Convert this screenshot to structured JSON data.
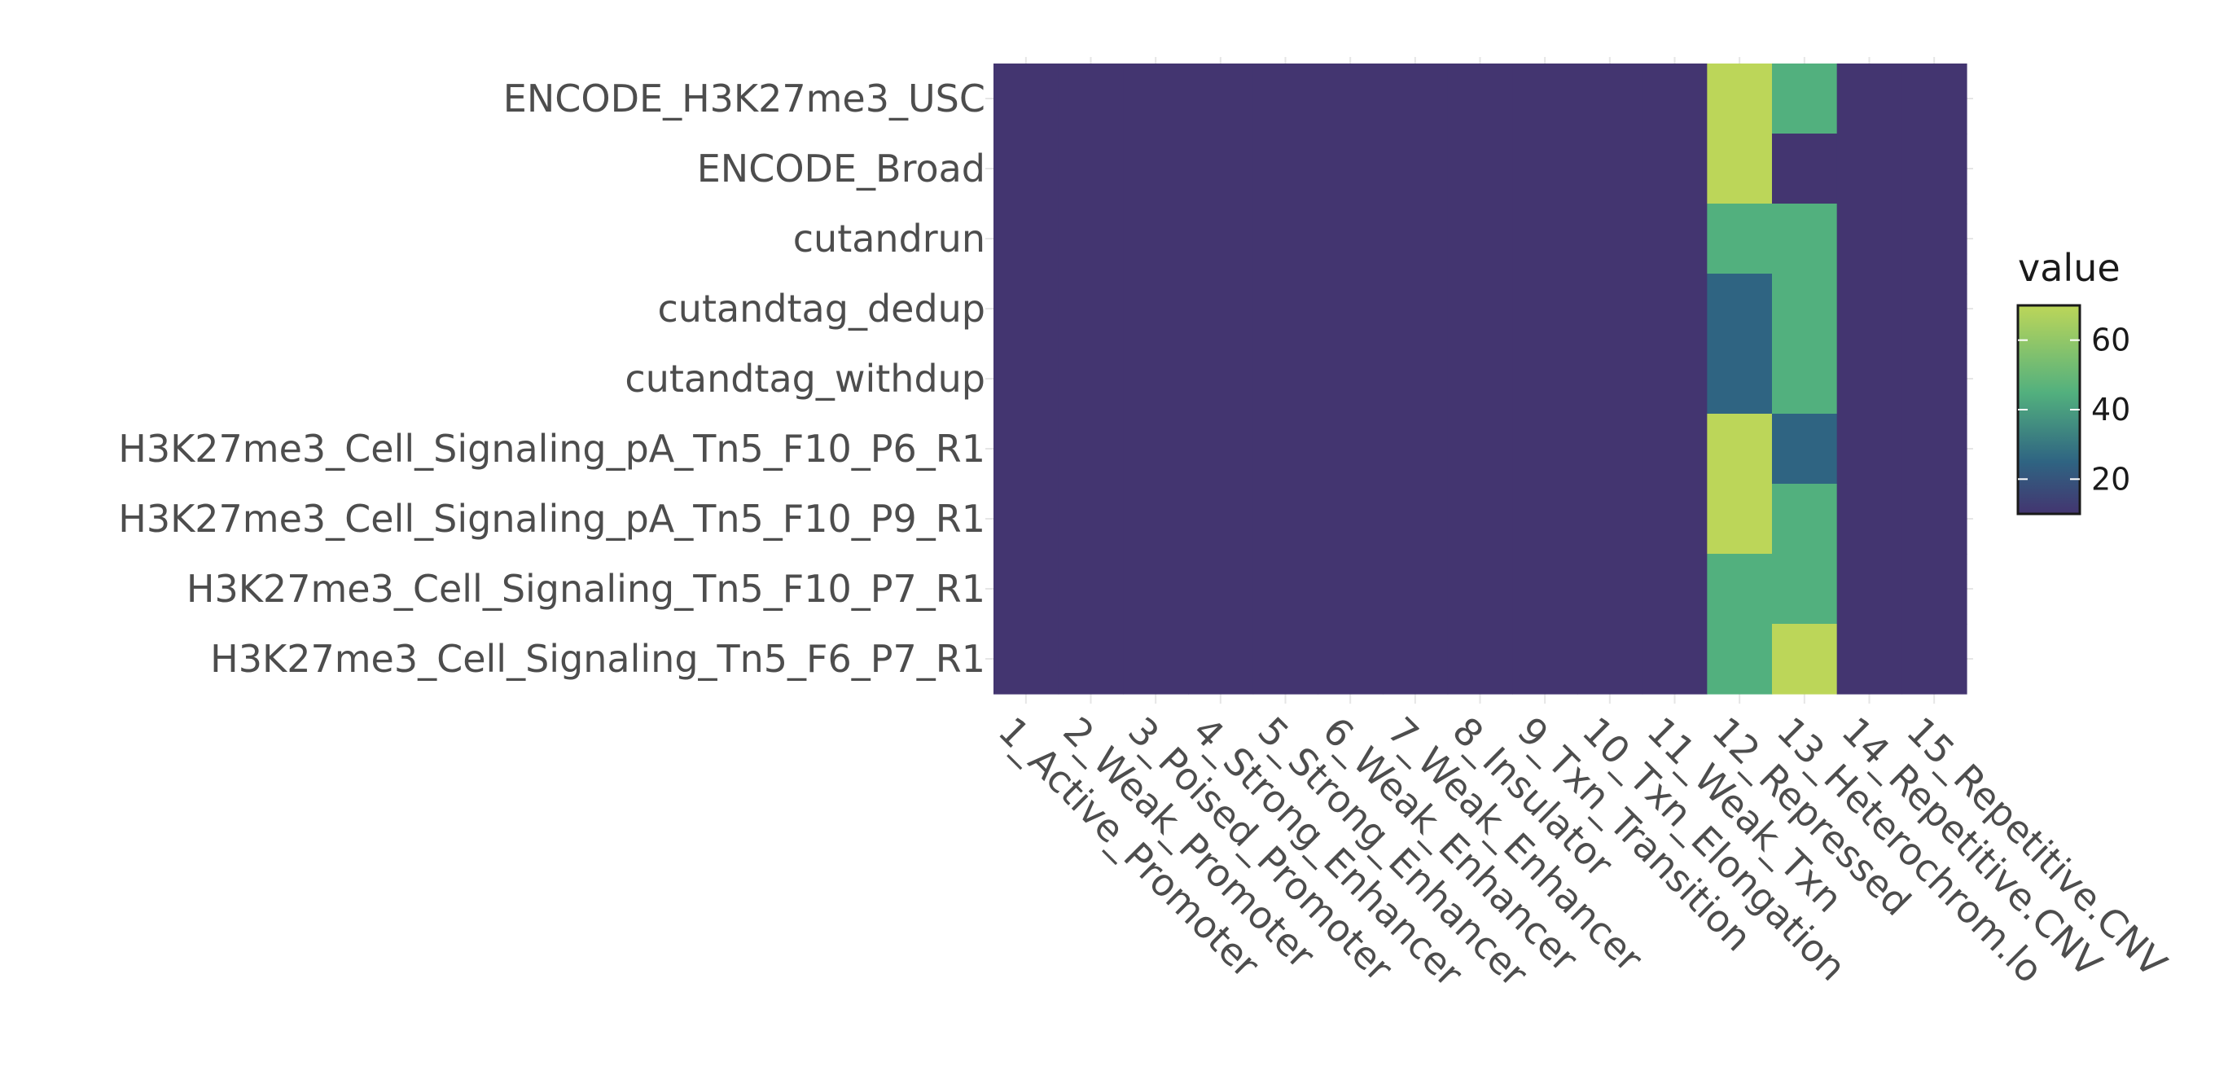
{
  "chart_data": {
    "type": "heatmap",
    "title": "",
    "xlabel": "",
    "ylabel": "",
    "x_categories": [
      "1_Active_Promoter",
      "2_Weak_Promoter",
      "3_Poised_Promoter",
      "4_Strong_Enhancer",
      "5_Strong_Enhancer",
      "6_Weak_Enhancer",
      "7_Weak_Enhancer",
      "8_Insulator",
      "9_Txn_Transition",
      "10_Txn_Elongation",
      "11_Weak_Txn",
      "12_Repressed",
      "13_Heterochrom.lo",
      "14_Repetitive.CNV",
      "15_Repetitive.CNV"
    ],
    "y_categories": [
      "ENCODE_H3K27me3_USC",
      "ENCODE_Broad",
      "cutandrun",
      "cutandtag_dedup",
      "cutandtag_withdup",
      "H3K27me3_Cell_Signaling_pA_Tn5_F10_P6_R1",
      "H3K27me3_Cell_Signaling_pA_Tn5_F10_P9_R1",
      "H3K27me3_Cell_Signaling_Tn5_F10_P7_R1",
      "H3K27me3_Cell_Signaling_Tn5_F6_P7_R1"
    ],
    "values": [
      [
        10,
        10,
        10,
        10,
        10,
        10,
        10,
        10,
        10,
        10,
        10,
        70,
        45,
        10,
        10
      ],
      [
        10,
        10,
        10,
        10,
        10,
        10,
        10,
        10,
        10,
        10,
        10,
        70,
        10,
        10,
        10
      ],
      [
        10,
        10,
        10,
        10,
        10,
        10,
        10,
        10,
        10,
        10,
        10,
        45,
        45,
        10,
        10
      ],
      [
        10,
        10,
        10,
        10,
        10,
        10,
        10,
        10,
        10,
        10,
        10,
        25,
        45,
        10,
        10
      ],
      [
        10,
        10,
        10,
        10,
        10,
        10,
        10,
        10,
        10,
        10,
        10,
        25,
        45,
        10,
        10
      ],
      [
        10,
        10,
        10,
        10,
        10,
        10,
        10,
        10,
        10,
        10,
        10,
        70,
        25,
        10,
        10
      ],
      [
        10,
        10,
        10,
        10,
        10,
        10,
        10,
        10,
        10,
        10,
        10,
        70,
        45,
        10,
        10
      ],
      [
        10,
        10,
        10,
        10,
        10,
        10,
        10,
        10,
        10,
        10,
        10,
        45,
        45,
        10,
        10
      ],
      [
        10,
        10,
        10,
        10,
        10,
        10,
        10,
        10,
        10,
        10,
        10,
        45,
        70,
        10,
        10
      ]
    ],
    "color_scale": "viridis",
    "colors": {
      "low": "#433570",
      "mid_low": "#2f6482",
      "mid": "#52b07e",
      "high": "#bcd659"
    },
    "legend": {
      "title": "value",
      "ticks": [
        "60",
        "40",
        "20"
      ],
      "tick_values": [
        60,
        40,
        20
      ],
      "range": [
        10,
        70
      ],
      "placement": "right"
    },
    "grid": true
  }
}
